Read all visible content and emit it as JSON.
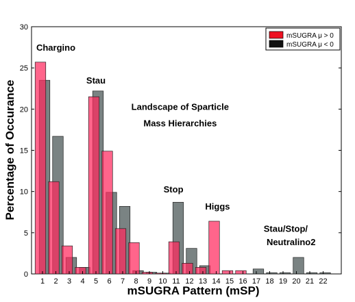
{
  "chart_data": {
    "type": "bar",
    "title": "",
    "xlabel": "mSUGRA Pattern (mSP)",
    "ylabel": "Percentage of Occurance",
    "ylim": [
      0,
      30
    ],
    "yticks": [
      0,
      5,
      10,
      15,
      20,
      25,
      30
    ],
    "grid": false,
    "legend_position": "top-right",
    "categories": [
      "1",
      "2",
      "3",
      "4",
      "5",
      "6",
      "7",
      "8",
      "9",
      "10",
      "11",
      "12",
      "13",
      "14",
      "15",
      "16",
      "17",
      "18",
      "19",
      "20",
      "21",
      "22"
    ],
    "series": [
      {
        "name": "mSUGRA μ < 0",
        "color": "#4d5a5a",
        "values": [
          23.5,
          16.7,
          2.0,
          0.8,
          22.2,
          9.9,
          8.2,
          0.4,
          0.2,
          0.1,
          8.7,
          3.1,
          1.0,
          0.0,
          0.0,
          0.0,
          0.6,
          0.15,
          0.15,
          2.0,
          0.15,
          0.15
        ]
      },
      {
        "name": "mSUGRA μ > 0",
        "color": "#ff2a5e",
        "values": [
          25.7,
          11.2,
          3.4,
          0.8,
          21.5,
          14.9,
          5.5,
          3.8,
          0.2,
          0.1,
          3.9,
          1.3,
          0.8,
          6.4,
          0.4,
          0.4,
          0.0,
          0.0,
          0.0,
          0.0,
          0.0,
          0.0
        ]
      }
    ],
    "legend": [
      {
        "label": "mSUGRA μ > 0",
        "color": "#ee1122"
      },
      {
        "label": "mSUGRA μ < 0",
        "color": "#111111"
      }
    ],
    "annotations": [
      {
        "text": "Chargino",
        "x": 2.0,
        "y": 27.1
      },
      {
        "text": "Stau",
        "x": 5.0,
        "y": 23.1
      },
      {
        "text": "Landscape of Sparticle",
        "x": 11.3,
        "y": 19.9
      },
      {
        "text": "Mass Hierarchies",
        "x": 11.3,
        "y": 17.9
      },
      {
        "text": "Stop",
        "x": 10.8,
        "y": 9.9
      },
      {
        "text": "Higgs",
        "x": 14.1,
        "y": 7.8
      },
      {
        "text": "Stau/Stop/",
        "x": 19.2,
        "y": 5.1
      },
      {
        "text": "Neutralino2",
        "x": 19.6,
        "y": 3.5
      }
    ]
  }
}
